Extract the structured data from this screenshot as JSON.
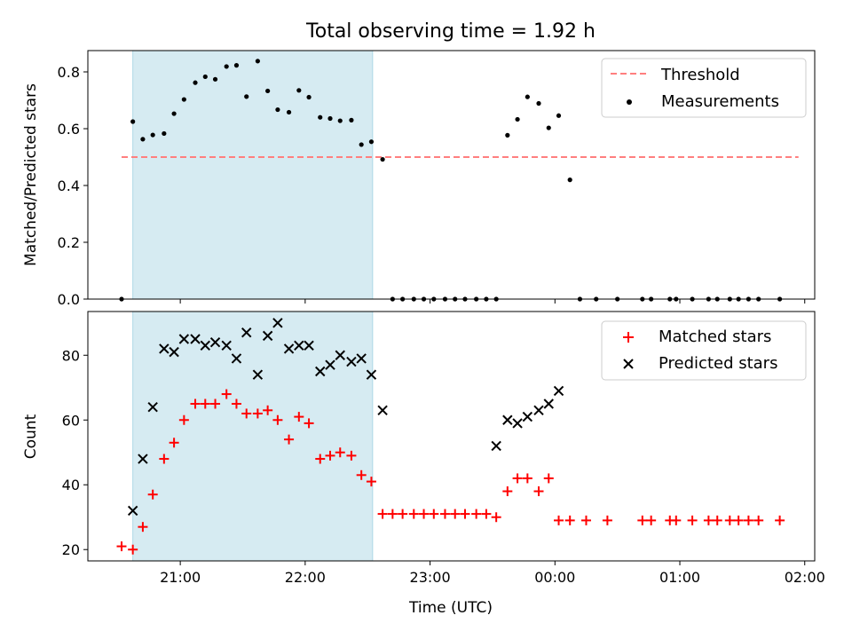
{
  "chart_data": [
    {
      "type": "scatter",
      "title": "Total observing time = 1.92 h",
      "xlabel": "",
      "ylabel": "Matched/Predicted stars",
      "x_unit": "hours since 21:00 UTC (axis labels are clock times)",
      "xlim": [
        -0.74,
        5.08
      ],
      "ylim": [
        0,
        0.875
      ],
      "yticks": [
        0.0,
        0.2,
        0.4,
        0.6,
        0.8
      ],
      "ytick_labels": [
        "0.0",
        "0.2",
        "0.4",
        "0.6",
        "0.8"
      ],
      "xticks": [
        0,
        1,
        2,
        3,
        4,
        5
      ],
      "xtick_labels": [
        "",
        "",
        "",
        "",
        "",
        ""
      ],
      "shaded_interval": {
        "start": -0.38,
        "end": 1.54,
        "color": "#add8e6"
      },
      "legend_position": "upper-right",
      "threshold": {
        "name": "Threshold",
        "y": 0.5,
        "x_start": -0.47,
        "x_end": 4.95,
        "color": "#ff7f7f"
      },
      "series": [
        {
          "name": "Measurements",
          "color": "#000000",
          "marker": "dot",
          "points": [
            [
              -0.47,
              0.0
            ],
            [
              -0.38,
              0.625
            ],
            [
              -0.3,
              0.563
            ],
            [
              -0.22,
              0.578
            ],
            [
              -0.13,
              0.583
            ],
            [
              -0.05,
              0.653
            ],
            [
              0.03,
              0.703
            ],
            [
              0.12,
              0.762
            ],
            [
              0.2,
              0.783
            ],
            [
              0.28,
              0.774
            ],
            [
              0.37,
              0.819
            ],
            [
              0.45,
              0.823
            ],
            [
              0.53,
              0.713
            ],
            [
              0.62,
              0.838
            ],
            [
              0.7,
              0.733
            ],
            [
              0.78,
              0.667
            ],
            [
              0.87,
              0.658
            ],
            [
              0.95,
              0.735
            ],
            [
              1.03,
              0.711
            ],
            [
              1.12,
              0.64
            ],
            [
              1.2,
              0.636
            ],
            [
              1.28,
              0.628
            ],
            [
              1.37,
              0.63
            ],
            [
              1.45,
              0.544
            ],
            [
              1.53,
              0.554
            ],
            [
              1.62,
              0.492
            ],
            [
              1.7,
              0.0
            ],
            [
              1.78,
              0.0
            ],
            [
              1.87,
              0.0
            ],
            [
              1.95,
              0.0
            ],
            [
              2.03,
              0.0
            ],
            [
              2.12,
              0.0
            ],
            [
              2.2,
              0.0
            ],
            [
              2.28,
              0.0
            ],
            [
              2.37,
              0.0
            ],
            [
              2.45,
              0.0
            ],
            [
              2.53,
              0.0
            ],
            [
              2.62,
              0.577
            ],
            [
              2.7,
              0.633
            ],
            [
              2.78,
              0.712
            ],
            [
              2.87,
              0.689
            ],
            [
              2.95,
              0.603
            ],
            [
              3.03,
              0.646
            ],
            [
              3.12,
              0.42
            ],
            [
              3.2,
              0.0
            ],
            [
              3.33,
              0.0
            ],
            [
              3.5,
              0.0
            ],
            [
              3.7,
              0.0
            ],
            [
              3.77,
              0.0
            ],
            [
              3.92,
              0.0
            ],
            [
              3.97,
              0.0
            ],
            [
              4.1,
              0.0
            ],
            [
              4.23,
              0.0
            ],
            [
              4.3,
              0.0
            ],
            [
              4.4,
              0.0
            ],
            [
              4.47,
              0.0
            ],
            [
              4.55,
              0.0
            ],
            [
              4.63,
              0.0
            ],
            [
              4.8,
              0.0
            ]
          ]
        }
      ]
    },
    {
      "type": "scatter",
      "title": "",
      "xlabel": "Time (UTC)",
      "ylabel": "Count",
      "x_unit": "hours since 21:00 UTC (axis labels are clock times)",
      "xlim": [
        -0.74,
        5.08
      ],
      "ylim": [
        16.5,
        93.5
      ],
      "yticks": [
        20,
        40,
        60,
        80
      ],
      "ytick_labels": [
        "20",
        "40",
        "60",
        "80"
      ],
      "xticks": [
        0,
        1,
        2,
        3,
        4,
        5
      ],
      "xtick_labels": [
        "21:00",
        "22:00",
        "23:00",
        "00:00",
        "01:00",
        "02:00"
      ],
      "shaded_interval": {
        "start": -0.38,
        "end": 1.54,
        "color": "#add8e6"
      },
      "legend_position": "upper-right",
      "series": [
        {
          "name": "Matched stars",
          "color": "#ff0000",
          "marker": "plus",
          "points": [
            [
              -0.47,
              21
            ],
            [
              -0.38,
              20
            ],
            [
              -0.3,
              27
            ],
            [
              -0.22,
              37
            ],
            [
              -0.13,
              48
            ],
            [
              -0.05,
              53
            ],
            [
              0.03,
              60
            ],
            [
              0.12,
              65
            ],
            [
              0.2,
              65
            ],
            [
              0.28,
              65
            ],
            [
              0.37,
              68
            ],
            [
              0.45,
              65
            ],
            [
              0.53,
              62
            ],
            [
              0.62,
              62
            ],
            [
              0.7,
              63
            ],
            [
              0.78,
              60
            ],
            [
              0.87,
              54
            ],
            [
              0.95,
              61
            ],
            [
              1.03,
              59
            ],
            [
              1.12,
              48
            ],
            [
              1.2,
              49
            ],
            [
              1.28,
              50
            ],
            [
              1.37,
              49
            ],
            [
              1.45,
              43
            ],
            [
              1.53,
              41
            ],
            [
              1.62,
              31
            ],
            [
              1.7,
              31
            ],
            [
              1.78,
              31
            ],
            [
              1.87,
              31
            ],
            [
              1.95,
              31
            ],
            [
              2.03,
              31
            ],
            [
              2.12,
              31
            ],
            [
              2.2,
              31
            ],
            [
              2.28,
              31
            ],
            [
              2.37,
              31
            ],
            [
              2.45,
              31
            ],
            [
              2.53,
              30
            ],
            [
              2.62,
              38
            ],
            [
              2.7,
              42
            ],
            [
              2.78,
              42
            ],
            [
              2.87,
              38
            ],
            [
              2.95,
              42
            ],
            [
              3.03,
              29
            ],
            [
              3.12,
              29
            ],
            [
              3.25,
              29
            ],
            [
              3.42,
              29
            ],
            [
              3.7,
              29
            ],
            [
              3.77,
              29
            ],
            [
              3.92,
              29
            ],
            [
              3.97,
              29
            ],
            [
              4.1,
              29
            ],
            [
              4.23,
              29
            ],
            [
              4.3,
              29
            ],
            [
              4.4,
              29
            ],
            [
              4.47,
              29
            ],
            [
              4.55,
              29
            ],
            [
              4.63,
              29
            ],
            [
              4.8,
              29
            ]
          ]
        },
        {
          "name": "Predicted stars",
          "color": "#000000",
          "marker": "x",
          "points": [
            [
              -0.38,
              32
            ],
            [
              -0.3,
              48
            ],
            [
              -0.22,
              64
            ],
            [
              -0.13,
              82
            ],
            [
              -0.05,
              81
            ],
            [
              0.03,
              85
            ],
            [
              0.12,
              85
            ],
            [
              0.2,
              83
            ],
            [
              0.28,
              84
            ],
            [
              0.37,
              83
            ],
            [
              0.45,
              79
            ],
            [
              0.53,
              87
            ],
            [
              0.62,
              74
            ],
            [
              0.7,
              86
            ],
            [
              0.78,
              90
            ],
            [
              0.87,
              82
            ],
            [
              0.95,
              83
            ],
            [
              1.03,
              83
            ],
            [
              1.12,
              75
            ],
            [
              1.2,
              77
            ],
            [
              1.28,
              80
            ],
            [
              1.37,
              78
            ],
            [
              1.45,
              79
            ],
            [
              1.53,
              74
            ],
            [
              1.62,
              63
            ],
            [
              2.53,
              52
            ],
            [
              2.62,
              60
            ],
            [
              2.7,
              59
            ],
            [
              2.78,
              61
            ],
            [
              2.87,
              63
            ],
            [
              2.95,
              65
            ],
            [
              3.03,
              69
            ]
          ]
        }
      ]
    }
  ]
}
